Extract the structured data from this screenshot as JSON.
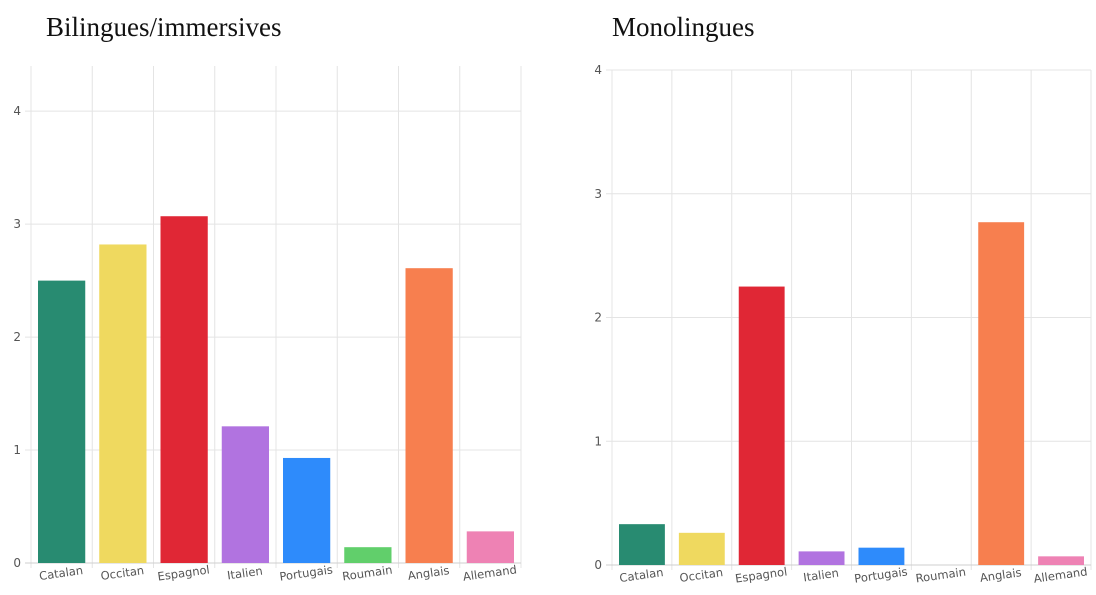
{
  "chart_data": [
    {
      "type": "bar",
      "title": "Bilingues/immersives",
      "categories": [
        "Catalan",
        "Occitan",
        "Espagnol",
        "Italien",
        "Portugais",
        "Roumain",
        "Anglais",
        "Allemand"
      ],
      "values": [
        2.5,
        2.82,
        3.07,
        1.21,
        0.93,
        0.14,
        2.61,
        0.28
      ],
      "colors": [
        "#288b71",
        "#efd95f",
        "#e02735",
        "#b173e0",
        "#2e8bfb",
        "#61cf6b",
        "#f77f4f",
        "#ee82b4"
      ],
      "ylim": [
        0,
        4.4
      ],
      "yticks": [
        0,
        1,
        2,
        3,
        4
      ],
      "grid": true
    },
    {
      "type": "bar",
      "title": "Monolingues",
      "categories": [
        "Catalan",
        "Occitan",
        "Espagnol",
        "Italien",
        "Portugais",
        "Roumain",
        "Anglais",
        "Allemand"
      ],
      "values": [
        0.33,
        0.26,
        2.25,
        0.11,
        0.14,
        0,
        2.77,
        0.07
      ],
      "colors": [
        "#288b71",
        "#efd95f",
        "#e02735",
        "#b173e0",
        "#2e8bfb",
        "#61cf6b",
        "#f77f4f",
        "#ee82b4"
      ],
      "ylim": [
        0,
        4
      ],
      "yticks": [
        0,
        1,
        2,
        3,
        4
      ],
      "grid": true
    }
  ]
}
